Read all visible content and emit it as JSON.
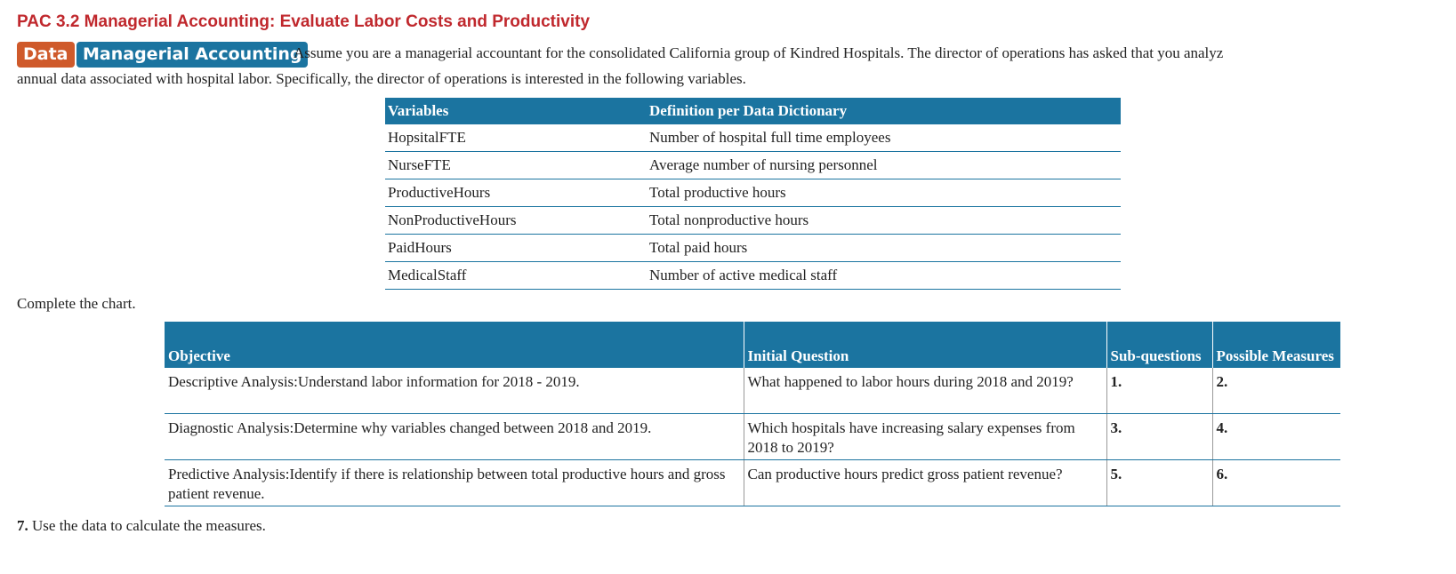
{
  "header": {
    "title": "PAC 3.2 Managerial Accounting: Evaluate Labor Costs and Productivity",
    "tags": [
      "Data",
      "Managerial Accounting"
    ]
  },
  "intro": [
    "Assume you are a managerial accountant for the consolidated California group of Kindred Hospitals. The director of operations has asked that you analyz",
    "annual data associated with hospital labor. Specifically, the director of operations is interested in the following variables."
  ],
  "variables_table": {
    "headers": [
      "Variables",
      "Definition per Data Dictionary"
    ],
    "rows": [
      [
        "HopsitalFTE",
        "Number of hospital full time employees"
      ],
      [
        "NurseFTE",
        "Average number of nursing personnel"
      ],
      [
        "ProductiveHours",
        "Total productive hours"
      ],
      [
        "NonProductiveHours",
        "Total nonproductive hours"
      ],
      [
        "PaidHours",
        "Total paid hours"
      ],
      [
        "MedicalStaff",
        "Number of active medical staff"
      ]
    ]
  },
  "instruction": "Complete the chart.",
  "chart_table": {
    "headers": [
      "Objective",
      "Initial Question",
      "Sub-questions",
      "Possible Measures"
    ],
    "rows": [
      [
        "Descriptive Analysis:Understand labor information for 2018 - 2019.",
        "What happened to labor hours during 2018 and 2019?",
        "1.",
        "2."
      ],
      [
        "Diagnostic Analysis:Determine why variables changed between 2018 and 2019.",
        "Which hospitals have increasing salary expenses from 2018 to 2019?",
        "3.",
        "4."
      ],
      [
        "Predictive Analysis:Identify if there is relationship between total productive hours and gross patient revenue.",
        "Can productive hours predict gross patient revenue?",
        "5.",
        "6."
      ]
    ]
  },
  "footer": {
    "number": "7.",
    "text": "Use the data to calculate the measures."
  }
}
